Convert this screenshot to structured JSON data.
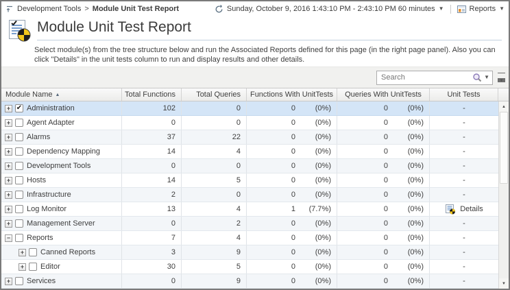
{
  "topbar": {
    "breadcrumb": {
      "items": [
        "Development Tools",
        "Module Unit Test Report"
      ],
      "separator": ">"
    },
    "time_range_label": "Sunday, October 9, 2016 1:43:10 PM - 2:43:10 PM 60 minutes",
    "reports_label": "Reports"
  },
  "page": {
    "title": "Module Unit Test Report",
    "description": "Select module(s) from the tree structure below and run the Associated Reports defined for this page (in the right page panel). Also you can click \"Details\" in the unit tests column to run and display results and other details."
  },
  "toolbar": {
    "search_placeholder": "Search"
  },
  "table": {
    "columns": [
      "Module Name",
      "Total Functions",
      "Total Queries",
      "Functions With UnitTests",
      "Queries With UnitTests",
      "Unit Tests"
    ],
    "sort": {
      "column": "Module Name",
      "direction": "ascending",
      "arrow": "▲"
    },
    "rows": [
      {
        "name": "Administration",
        "indent": 0,
        "expand": "+",
        "checked": true,
        "selected": true,
        "total_functions": "102",
        "total_queries": "0",
        "functions_with_unittests": "0",
        "functions_with_unittests_pct": "(0%)",
        "queries_with_unittests": "0",
        "queries_with_unittests_pct": "(0%)",
        "unit_tests": "-"
      },
      {
        "name": "Agent Adapter",
        "indent": 0,
        "expand": "+",
        "checked": false,
        "selected": false,
        "total_functions": "0",
        "total_queries": "0",
        "functions_with_unittests": "0",
        "functions_with_unittests_pct": "(0%)",
        "queries_with_unittests": "0",
        "queries_with_unittests_pct": "(0%)",
        "unit_tests": "-"
      },
      {
        "name": "Alarms",
        "indent": 0,
        "expand": "+",
        "checked": false,
        "selected": false,
        "total_functions": "37",
        "total_queries": "22",
        "functions_with_unittests": "0",
        "functions_with_unittests_pct": "(0%)",
        "queries_with_unittests": "0",
        "queries_with_unittests_pct": "(0%)",
        "unit_tests": "-"
      },
      {
        "name": "Dependency Mapping",
        "indent": 0,
        "expand": "+",
        "checked": false,
        "selected": false,
        "total_functions": "14",
        "total_queries": "4",
        "functions_with_unittests": "0",
        "functions_with_unittests_pct": "(0%)",
        "queries_with_unittests": "0",
        "queries_with_unittests_pct": "(0%)",
        "unit_tests": "-"
      },
      {
        "name": "Development Tools",
        "indent": 0,
        "expand": "+",
        "checked": false,
        "selected": false,
        "total_functions": "0",
        "total_queries": "0",
        "functions_with_unittests": "0",
        "functions_with_unittests_pct": "(0%)",
        "queries_with_unittests": "0",
        "queries_with_unittests_pct": "(0%)",
        "unit_tests": "-"
      },
      {
        "name": "Hosts",
        "indent": 0,
        "expand": "+",
        "checked": false,
        "selected": false,
        "total_functions": "14",
        "total_queries": "5",
        "functions_with_unittests": "0",
        "functions_with_unittests_pct": "(0%)",
        "queries_with_unittests": "0",
        "queries_with_unittests_pct": "(0%)",
        "unit_tests": "-"
      },
      {
        "name": "Infrastructure",
        "indent": 0,
        "expand": "+",
        "checked": false,
        "selected": false,
        "total_functions": "2",
        "total_queries": "0",
        "functions_with_unittests": "0",
        "functions_with_unittests_pct": "(0%)",
        "queries_with_unittests": "0",
        "queries_with_unittests_pct": "(0%)",
        "unit_tests": "-"
      },
      {
        "name": "Log Monitor",
        "indent": 0,
        "expand": "+",
        "checked": false,
        "selected": false,
        "total_functions": "13",
        "total_queries": "4",
        "functions_with_unittests": "1",
        "functions_with_unittests_pct": "(7.7%)",
        "queries_with_unittests": "0",
        "queries_with_unittests_pct": "(0%)",
        "unit_tests": "Details",
        "details": true
      },
      {
        "name": "Management Server",
        "indent": 0,
        "expand": "+",
        "checked": false,
        "selected": false,
        "total_functions": "0",
        "total_queries": "2",
        "functions_with_unittests": "0",
        "functions_with_unittests_pct": "(0%)",
        "queries_with_unittests": "0",
        "queries_with_unittests_pct": "(0%)",
        "unit_tests": "-"
      },
      {
        "name": "Reports",
        "indent": 0,
        "expand": "−",
        "checked": false,
        "selected": false,
        "total_functions": "7",
        "total_queries": "4",
        "functions_with_unittests": "0",
        "functions_with_unittests_pct": "(0%)",
        "queries_with_unittests": "0",
        "queries_with_unittests_pct": "(0%)",
        "unit_tests": "-"
      },
      {
        "name": "Canned Reports",
        "indent": 1,
        "expand": "+",
        "checked": false,
        "selected": false,
        "total_functions": "3",
        "total_queries": "9",
        "functions_with_unittests": "0",
        "functions_with_unittests_pct": "(0%)",
        "queries_with_unittests": "0",
        "queries_with_unittests_pct": "(0%)",
        "unit_tests": "-"
      },
      {
        "name": "Editor",
        "indent": 1,
        "expand": "+",
        "checked": false,
        "selected": false,
        "total_functions": "30",
        "total_queries": "5",
        "functions_with_unittests": "0",
        "functions_with_unittests_pct": "(0%)",
        "queries_with_unittests": "0",
        "queries_with_unittests_pct": "(0%)",
        "unit_tests": "-"
      },
      {
        "name": "Services",
        "indent": 0,
        "expand": "+",
        "checked": false,
        "selected": false,
        "total_functions": "0",
        "total_queries": "9",
        "functions_with_unittests": "0",
        "functions_with_unittests_pct": "(0%)",
        "queries_with_unittests": "0",
        "queries_with_unittests_pct": "(0%)",
        "unit_tests": "-"
      }
    ]
  },
  "colors": {
    "selected_row": "#d4e5f7",
    "zebra_row": "#f3f6f9",
    "toolbar_bg": "#f1f1ef",
    "pie_yellow": "#f3c71c",
    "pie_black": "#1d1d1d",
    "doc_line_blue": "#4f81c0"
  }
}
